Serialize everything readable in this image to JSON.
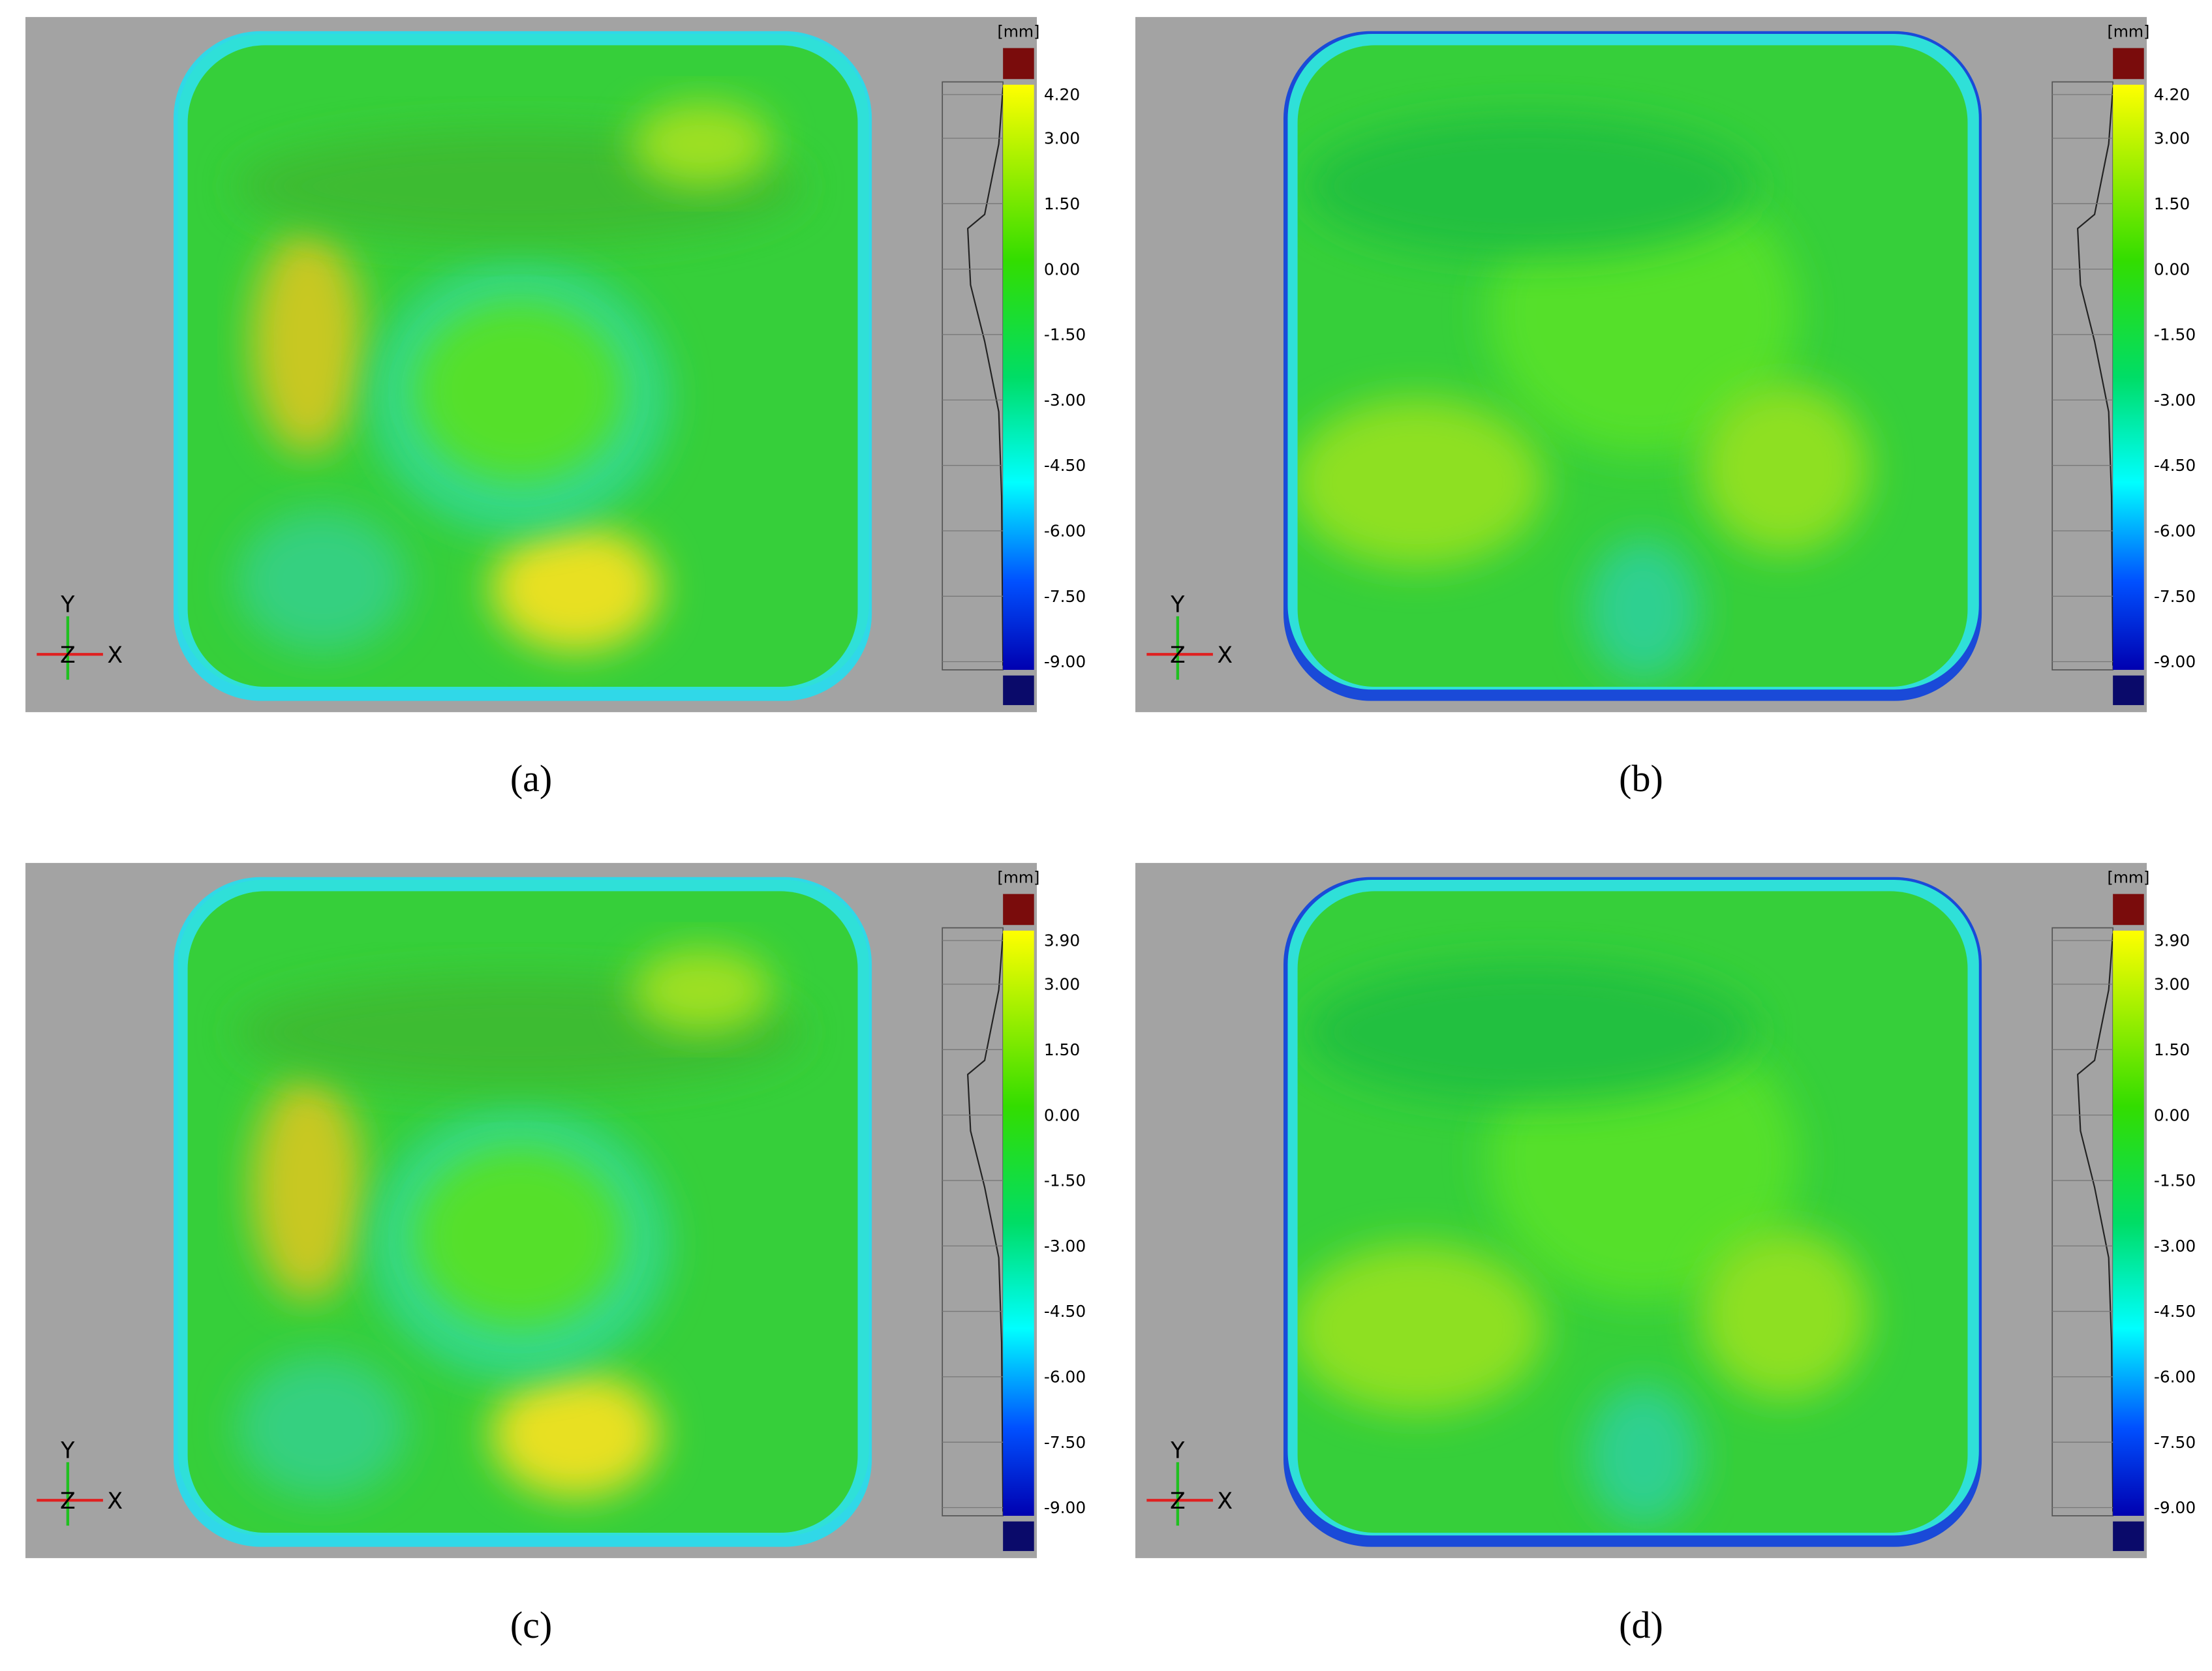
{
  "panels": [
    {
      "label": "(a)",
      "unit": "[mm]",
      "scale": [
        "4.20",
        "3.00",
        "1.50",
        "0.00",
        "-1.50",
        "-3.00",
        "-4.50",
        "-6.00",
        "-7.50",
        "-9.00"
      ],
      "axes": [
        "Y",
        "Z",
        "X"
      ]
    },
    {
      "label": "(b)",
      "unit": "[mm]",
      "scale": [
        "4.20",
        "3.00",
        "1.50",
        "0.00",
        "-1.50",
        "-3.00",
        "-4.50",
        "-6.00",
        "-7.50",
        "-9.00"
      ],
      "axes": [
        "Y",
        "Z",
        "X"
      ]
    },
    {
      "label": "(c)",
      "unit": "[mm]",
      "scale": [
        "3.90",
        "3.00",
        "1.50",
        "0.00",
        "-1.50",
        "-3.00",
        "-4.50",
        "-6.00",
        "-7.50",
        "-9.00"
      ],
      "axes": [
        "Y",
        "Z",
        "X"
      ]
    },
    {
      "label": "(d)",
      "unit": "[mm]",
      "scale": [
        "3.90",
        "3.00",
        "1.50",
        "0.00",
        "-1.50",
        "-3.00",
        "-4.50",
        "-6.00",
        "-7.50",
        "-9.00"
      ],
      "axes": [
        "Y",
        "Z",
        "X"
      ]
    }
  ]
}
